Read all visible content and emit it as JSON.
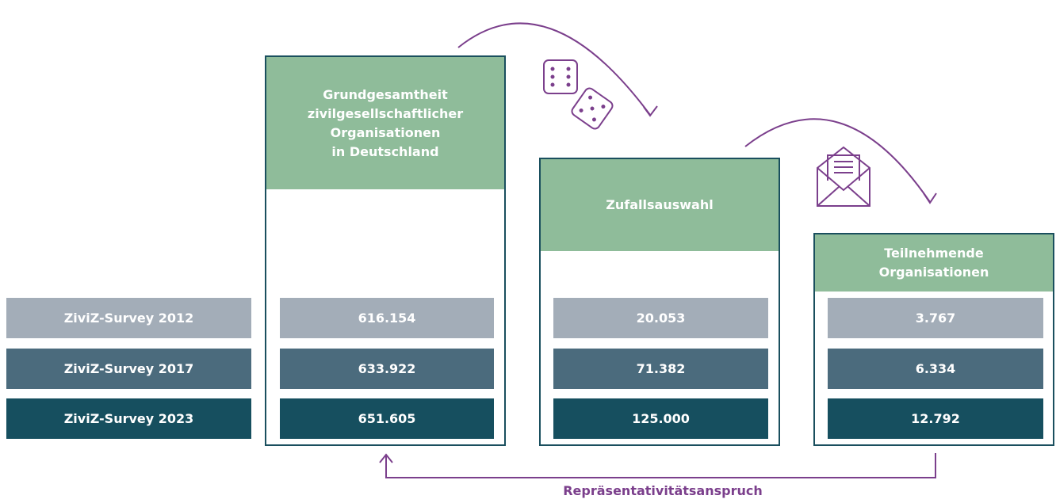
{
  "rows": [
    "ZiviZ-Survey 2012",
    "ZiviZ-Survey 2017",
    "ZiviZ-Survey 2023"
  ],
  "columns": [
    {
      "title_lines": [
        "Grundgesamtheit",
        "zivilgesellschaftlicher",
        "Organisationen",
        "in Deutschland"
      ],
      "values": [
        "616.154",
        "633.922",
        "651.605"
      ]
    },
    {
      "title_lines": [
        "Zufallsauswahl"
      ],
      "values": [
        "20.053",
        "71.382",
        "125.000"
      ]
    },
    {
      "title_lines": [
        "Teilnehmende",
        "Organisationen"
      ],
      "values": [
        "3.767",
        "6.334",
        "12.792"
      ]
    }
  ],
  "footer": "Repräsentativitätsanspruch"
}
